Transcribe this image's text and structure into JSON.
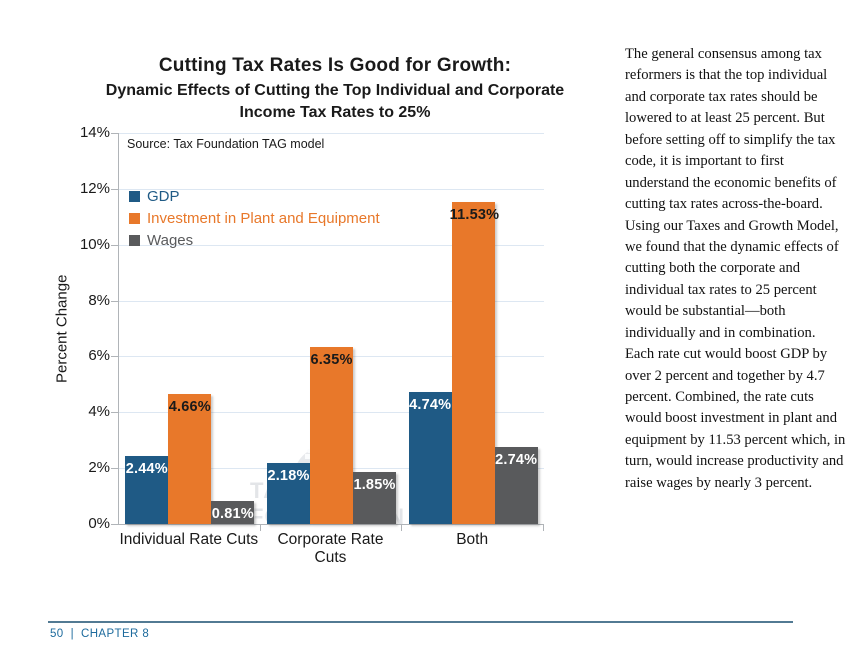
{
  "chart_data": {
    "type": "bar",
    "title": "Cutting Tax Rates Is Good for Growth:",
    "subtitle": "Dynamic Effects of Cutting the Top Individual and Corporate Income Tax Rates to 25%",
    "source": "Source: Tax Foundation TAG model",
    "ylabel": "Percent Change",
    "xlabel": "",
    "categories": [
      "Individual Rate Cuts",
      "Corporate Rate Cuts",
      "Both"
    ],
    "series": [
      {
        "name": "GDP",
        "color": "#1f5a85",
        "value_label_color": "#ffffff",
        "values": [
          2.44,
          2.18,
          4.74
        ]
      },
      {
        "name": "Investment in Plant and Equipment",
        "color": "#e8782a",
        "value_label_color": "#1a1a1a",
        "values": [
          4.66,
          6.35,
          11.53
        ]
      },
      {
        "name": "Wages",
        "color": "#595a5c",
        "value_label_color": "#ffffff",
        "values": [
          0.81,
          1.85,
          2.74
        ]
      }
    ],
    "ylim": [
      0,
      14
    ],
    "ytick_step": 2,
    "ytick_labels": [
      "0%",
      "2%",
      "4%",
      "6%",
      "8%",
      "10%",
      "12%",
      "14%"
    ],
    "value_suffix": "%",
    "grid": true,
    "legend_position": "top-left-inside"
  },
  "watermark": {
    "brand_line1": "TAX",
    "brand_line2": "FOUNDATION",
    "since_line1": "Since",
    "since_line2": "1937"
  },
  "sidebar": {
    "paragraph": "The general consensus among tax reformers is that the top individual and corporate tax rates should be lowered to at least 25 percent. But before setting off to simplify the tax code, it is important to first understand the economic benefits of cutting tax rates across-the-board. Using our Taxes and Growth Model, we found that the dynamic effects of cutting both the corporate and individual tax rates to 25 percent would be substantial—both individually and in combination. Each rate cut would boost GDP by over 2 percent and together by 4.7 percent. Combined, the rate cuts would boost investment in plant and equipment by 11.53 percent which, in turn, would increase productivity and raise wages by nearly 3 percent."
  },
  "footer": {
    "page_number": "50",
    "divider": "|",
    "chapter": "CHAPTER 8",
    "text_color": "#1d6b9d"
  }
}
